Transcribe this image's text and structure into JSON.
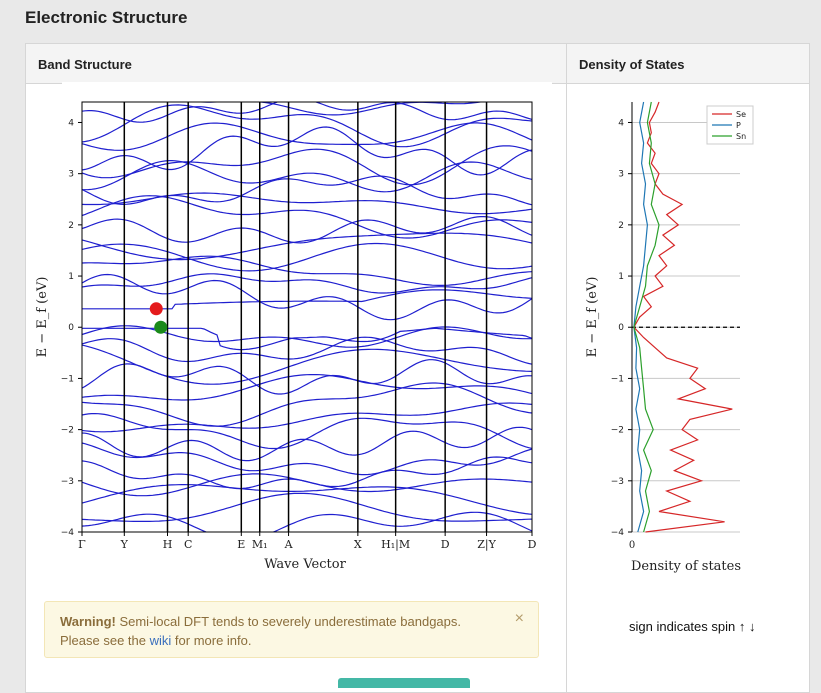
{
  "page_title": "Electronic Structure",
  "band_panel_title": "Band Structure",
  "dos_panel_title": "Density of States",
  "warning": {
    "strong": "Warning!",
    "text1": " Semi-local DFT tends to severely underestimate bandgaps.",
    "text2": "Please see the ",
    "link": "wiki",
    "text3": " for more info."
  },
  "close_glyph": "×",
  "spin_note": "sign indicates spin ↑ ↓",
  "colors": {
    "band": "#1f1fcf",
    "vbm": "#e41a1c",
    "cbm": "#1a8a1a",
    "se": "#d62728",
    "p": "#1f77b4",
    "sn": "#2ca02c"
  },
  "chart_data": [
    {
      "type": "line",
      "title": "",
      "xlabel": "Wave Vector",
      "ylabel": "E − E_f (eV)",
      "ylim": [
        -4,
        4.4
      ],
      "yticks": [
        -4,
        -3,
        -2,
        -1,
        0,
        1,
        2,
        3,
        4
      ],
      "xticks": [
        "Γ",
        "Y",
        "H",
        "C",
        "E",
        "M₁",
        "A",
        "X",
        "H₁|M",
        "D",
        "Z|Y",
        "D"
      ],
      "high_symmetry_x": [
        0,
        0.094,
        0.19,
        0.236,
        0.354,
        0.395,
        0.459,
        0.613,
        0.697,
        0.807,
        0.899,
        1.0
      ],
      "markers": [
        {
          "name": "VBM",
          "x": 0.165,
          "y": 0.36
        },
        {
          "name": "CBM",
          "x": 0.175,
          "y": 0.0
        }
      ],
      "num_bands_shown": 34
    },
    {
      "type": "line",
      "title": "",
      "xlabel": "Density of states",
      "ylabel": "E − E_f (eV)",
      "ylim": [
        -4,
        4.4
      ],
      "yticks": [
        -4,
        -3,
        -2,
        -1,
        0,
        1,
        2,
        3,
        4
      ],
      "xticks": [
        "0"
      ],
      "legend": {
        "position": "top-right",
        "entries": [
          "Se",
          "P",
          "Sn"
        ]
      },
      "fermi_level": 0,
      "series": [
        {
          "name": "Se",
          "e": [
            -4.0,
            -3.8,
            -3.6,
            -3.4,
            -3.2,
            -3.0,
            -2.8,
            -2.6,
            -2.4,
            -2.2,
            -2.0,
            -1.8,
            -1.6,
            -1.4,
            -1.2,
            -1.0,
            -0.8,
            -0.6,
            -0.4,
            -0.2,
            0.0,
            0.2,
            0.4,
            0.6,
            0.8,
            1.0,
            1.2,
            1.4,
            1.6,
            1.8,
            2.0,
            2.2,
            2.4,
            2.6,
            2.8,
            3.0,
            3.2,
            3.4,
            3.6,
            3.8,
            4.0,
            4.2,
            4.4
          ],
          "v": [
            0.35,
            2.4,
            0.7,
            1.5,
            0.9,
            1.8,
            1.1,
            1.6,
            1.0,
            1.7,
            1.3,
            1.5,
            2.6,
            1.2,
            1.9,
            1.5,
            1.7,
            0.9,
            0.6,
            0.3,
            0.05,
            0.2,
            0.5,
            0.3,
            0.8,
            0.6,
            0.9,
            0.7,
            1.1,
            0.8,
            1.2,
            0.9,
            1.3,
            0.8,
            0.6,
            0.7,
            0.5,
            0.6,
            0.4,
            0.5,
            0.45,
            0.6,
            0.7
          ]
        },
        {
          "name": "P",
          "e": [
            -4.0,
            -3.6,
            -3.2,
            -2.8,
            -2.4,
            -2.0,
            -1.6,
            -1.2,
            -0.8,
            -0.4,
            0.0,
            0.4,
            0.8,
            1.2,
            1.6,
            2.0,
            2.4,
            2.8,
            3.2,
            3.6,
            4.0,
            4.4
          ],
          "v": [
            0.15,
            0.3,
            0.2,
            0.25,
            0.15,
            0.2,
            0.1,
            0.2,
            0.1,
            0.12,
            0.05,
            0.1,
            0.2,
            0.3,
            0.35,
            0.4,
            0.3,
            0.35,
            0.25,
            0.3,
            0.2,
            0.3
          ]
        },
        {
          "name": "Sn",
          "e": [
            -4.0,
            -3.6,
            -3.2,
            -2.8,
            -2.4,
            -2.0,
            -1.6,
            -1.2,
            -0.8,
            -0.4,
            0.0,
            0.4,
            0.8,
            1.2,
            1.6,
            2.0,
            2.4,
            2.8,
            3.2,
            3.6,
            4.0,
            4.4
          ],
          "v": [
            0.3,
            0.45,
            0.35,
            0.5,
            0.3,
            0.55,
            0.35,
            0.3,
            0.25,
            0.2,
            0.05,
            0.2,
            0.35,
            0.4,
            0.6,
            0.7,
            0.5,
            0.6,
            0.45,
            0.5,
            0.4,
            0.5
          ]
        }
      ]
    }
  ]
}
